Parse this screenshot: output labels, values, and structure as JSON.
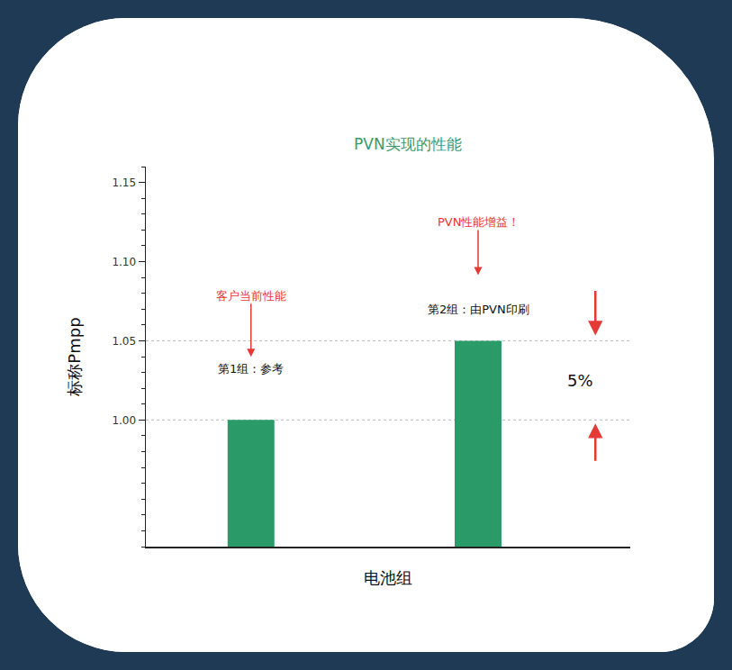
{
  "chart_data": {
    "type": "bar",
    "title": "PVN实现的性能",
    "x_label": "电池组",
    "y_label": "标称Pmpp",
    "categories": [
      "第1组：参考",
      "第2组：由PVN印刷"
    ],
    "values": [
      1.0,
      1.05
    ],
    "color": "#2a9a68",
    "ylim": [
      0.92,
      1.16
    ],
    "yticks": [
      {
        "value": 1,
        "label": "1.00"
      },
      1.05,
      {
        "value": 1.1,
        "label": "1.10"
      },
      1.15
    ],
    "grid": false,
    "tick_labels": "y",
    "annotations": [
      "客户当前性能",
      "PVN性能增益！",
      "5%"
    ]
  }
}
